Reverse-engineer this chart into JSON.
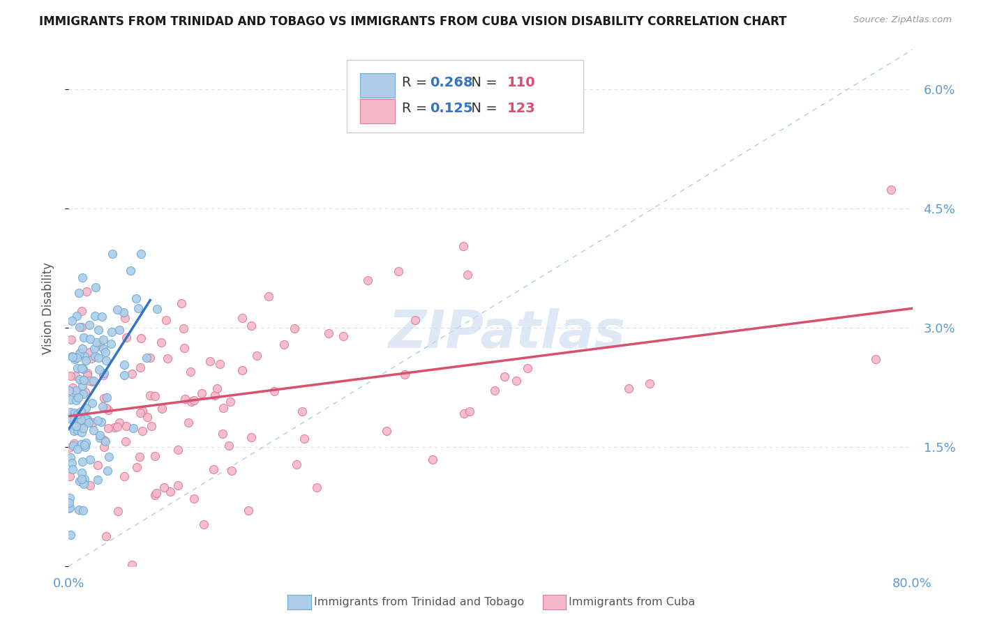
{
  "title": "IMMIGRANTS FROM TRINIDAD AND TOBAGO VS IMMIGRANTS FROM CUBA VISION DISABILITY CORRELATION CHART",
  "source": "Source: ZipAtlas.com",
  "ylabel": "Vision Disability",
  "series1_label": "Immigrants from Trinidad and Tobago",
  "series2_label": "Immigrants from Cuba",
  "series1_R": 0.268,
  "series1_N": 110,
  "series2_R": 0.125,
  "series2_N": 123,
  "series1_color": "#aecde8",
  "series2_color": "#f5b8c8",
  "series1_edge": "#6aaad4",
  "series2_edge": "#e07898",
  "trend1_color": "#3373c4",
  "trend2_color": "#d94f6e",
  "ref_line_color": "#aecde8",
  "grid_color": "#d0dff0",
  "watermark": "ZIPatlas",
  "xmin": 0.0,
  "xmax": 0.8,
  "ymin": 0.0,
  "ymax": 0.065,
  "yticks": [
    0.0,
    0.015,
    0.03,
    0.045,
    0.06
  ],
  "ytick_labels": [
    "",
    "1.5%",
    "3.0%",
    "4.5%",
    "6.0%"
  ],
  "title_fontsize": 12,
  "axis_color": "#5b9bd5",
  "legend_R_color": "#3373c4",
  "legend_N_color": "#d94f6e"
}
